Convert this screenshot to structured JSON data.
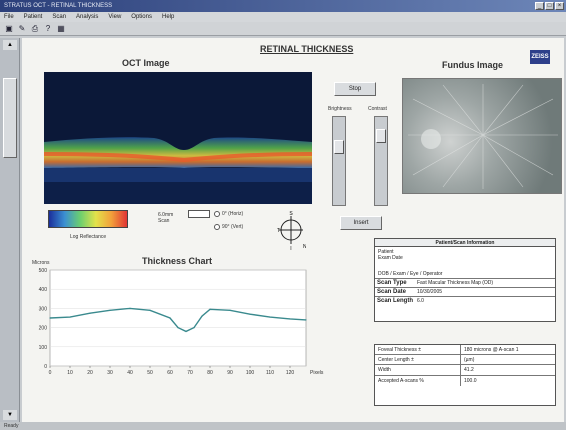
{
  "window": {
    "title": "STRATUS OCT - RETINAL THICKNESS",
    "controls": [
      "_",
      "□",
      "×"
    ]
  },
  "menu": [
    "File",
    "Patient",
    "Scan",
    "Analysis",
    "View",
    "Options",
    "Help"
  ],
  "toolbar": [
    "new-icon",
    "scan-icon",
    "print-icon",
    "help-icon",
    "grid-icon"
  ],
  "page": {
    "title": "RETINAL THICKNESS",
    "logo": "ZEISS",
    "oct_label": "OCT Image",
    "fundus_label": "Fundus Image"
  },
  "controls": {
    "stop_label": "Stop",
    "insert_label": "Insert",
    "brightness_label": "Brightness",
    "contrast_label": "Contrast",
    "brightness_level": 0.3,
    "contrast_level": 0.15
  },
  "colorbar": {
    "label": "Log Reflectance"
  },
  "scan": {
    "length_label": "6.0mm Scan",
    "options": [
      "0° (Horiz)",
      "90° (Vert)"
    ],
    "compass": {
      "n": "S",
      "s": "I",
      "w": "T",
      "e": "N"
    }
  },
  "chart_data": {
    "type": "line",
    "title": "Thickness Chart",
    "ylabel": "Microns",
    "xlabel": "Pixels",
    "ylim": [
      0,
      500
    ],
    "xlim": [
      0,
      128
    ],
    "yticks": [
      0,
      100,
      200,
      300,
      400,
      500
    ],
    "xticks": [
      0,
      10,
      20,
      30,
      40,
      50,
      60,
      70,
      80,
      90,
      100,
      110,
      120
    ],
    "x": [
      0,
      10,
      20,
      30,
      40,
      50,
      60,
      64,
      68,
      72,
      76,
      80,
      90,
      100,
      110,
      120,
      128
    ],
    "values": [
      250,
      255,
      275,
      290,
      300,
      290,
      250,
      200,
      180,
      200,
      260,
      295,
      290,
      270,
      255,
      245,
      240
    ]
  },
  "info": {
    "title": "Patient/Scan Information",
    "name_line": "Patient",
    "id_line": "Exam Date",
    "date_line": "DOB / Exam / Eye / Operator",
    "rows": [
      {
        "key": "Scan Type",
        "value": "Fast Macular Thickness Map (OD)"
      },
      {
        "key": "Scan Date",
        "value": "10/30/2005"
      },
      {
        "key": "Scan Length",
        "value": "6.0"
      }
    ]
  },
  "measurements": [
    {
      "key": "Foveal Thickness ±",
      "value": "180 microns @ A-scan 1"
    },
    {
      "key": "Center Length ±",
      "value": "(µm)"
    },
    {
      "key": "Width",
      "value": "41.2"
    },
    {
      "key": "Accepted A-scans %",
      "value": "100.0"
    }
  ],
  "status": "Ready"
}
